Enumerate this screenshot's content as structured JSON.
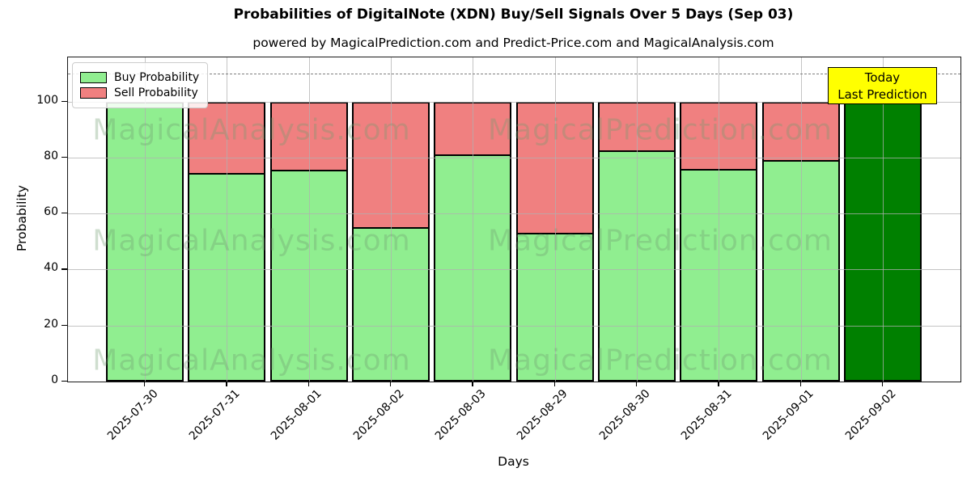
{
  "chart_data": {
    "type": "bar",
    "stacked": true,
    "title": "Probabilities of DigitalNote (XDN) Buy/Sell Signals Over 5 Days (Sep 03)",
    "subtitle": "powered by MagicalPrediction.com and Predict-Price.com and MagicalAnalysis.com",
    "xlabel": "Days",
    "ylabel": "Probability",
    "ylim": [
      0,
      115.75
    ],
    "yticks": [
      0,
      20,
      40,
      60,
      80,
      100
    ],
    "grid": true,
    "legend_position": "upper left",
    "dashed_line_y": 110,
    "categories": [
      "2025-07-30",
      "2025-07-31",
      "2025-08-01",
      "2025-08-02",
      "2025-08-03",
      "2025-08-29",
      "2025-08-30",
      "2025-08-31",
      "2025-09-01",
      "2025-09-02"
    ],
    "series": [
      {
        "name": "Buy Probability",
        "color": "#90EE90",
        "values": [
          100,
          74.5,
          75.5,
          55,
          81,
          53,
          82.5,
          76,
          79,
          100
        ]
      },
      {
        "name": "Sell Probability",
        "color": "#F08080",
        "values": [
          0,
          25.5,
          24.5,
          45,
          19,
          47,
          17.5,
          24,
          21,
          0
        ]
      }
    ],
    "today_bar": {
      "category": "2025-09-02",
      "index": 9,
      "color": "#008000"
    },
    "annotation": {
      "line1": "Today",
      "line2": "Last Prediction",
      "bg": "#FFFF00"
    },
    "watermarks": {
      "left": "MagicalAnalysis.com",
      "right": "MagicalPrediction.com"
    }
  }
}
